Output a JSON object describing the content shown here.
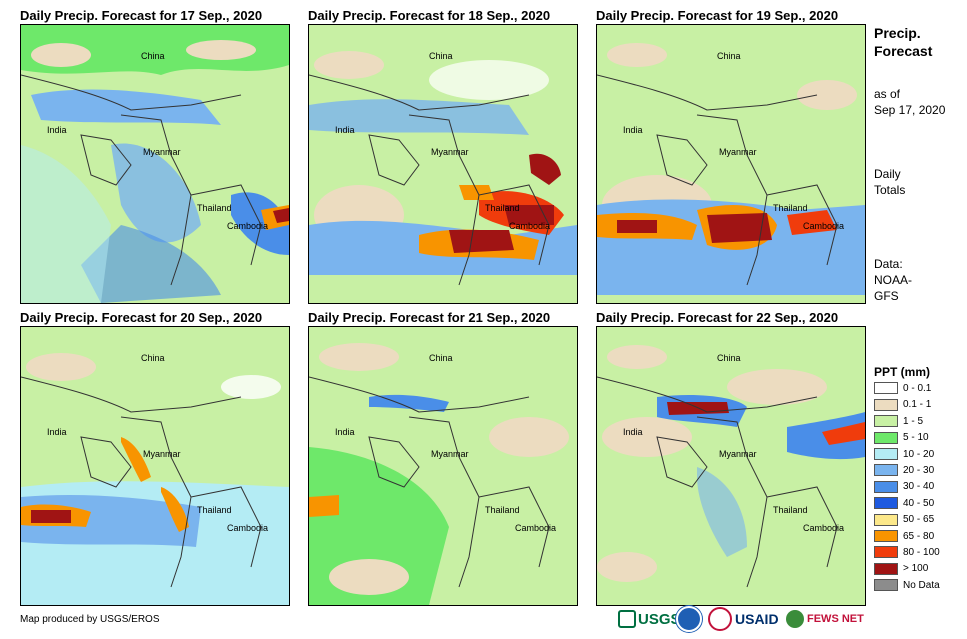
{
  "panels": [
    {
      "title": "Daily Precip. Forecast for 17 Sep., 2020"
    },
    {
      "title": "Daily Precip. Forecast for 18 Sep., 2020"
    },
    {
      "title": "Daily Precip. Forecast for 19 Sep., 2020"
    },
    {
      "title": "Daily Precip. Forecast for 20 Sep., 2020"
    },
    {
      "title": "Daily Precip. Forecast for 21 Sep., 2020"
    },
    {
      "title": "Daily Precip. Forecast for 22 Sep., 2020"
    }
  ],
  "place_labels": {
    "china": "China",
    "india": "India",
    "myanmar": "Myanmar",
    "thailand": "Thailand",
    "cambodia": "Cambodia"
  },
  "side": {
    "title_line1": "Precip.",
    "title_line2": "Forecast",
    "asof_line1": "as of",
    "asof_line2": "Sep 17, 2020",
    "totals_line1": "Daily",
    "totals_line2": "Totals",
    "data_line1": "Data:",
    "data_line2": "NOAA-",
    "data_line3": "GFS"
  },
  "legend": {
    "title": "PPT (mm)",
    "items": [
      {
        "label": "0 - 0.1",
        "color": "#ffffff"
      },
      {
        "label": "0.1 - 1",
        "color": "#ecdcc0"
      },
      {
        "label": "1 - 5",
        "color": "#c8f0a4"
      },
      {
        "label": "5 - 10",
        "color": "#6ee86a"
      },
      {
        "label": "10 - 20",
        "color": "#b4ecf4"
      },
      {
        "label": "20 - 30",
        "color": "#7ab4ee"
      },
      {
        "label": "30 - 40",
        "color": "#4a8ee8"
      },
      {
        "label": "40 - 50",
        "color": "#1e5ae0"
      },
      {
        "label": "50 - 65",
        "color": "#fce88a"
      },
      {
        "label": "65 - 80",
        "color": "#f89400"
      },
      {
        "label": "80 - 100",
        "color": "#f03c0c"
      },
      {
        "label": "> 100",
        "color": "#a01414"
      },
      {
        "label": "No Data",
        "color": "#8c8c8c"
      }
    ]
  },
  "footer": {
    "credit": "Map produced by USGS/EROS"
  },
  "logos": {
    "usgs": "USGS",
    "usaid": "USAID",
    "fewsnet": "FEWS NET"
  }
}
